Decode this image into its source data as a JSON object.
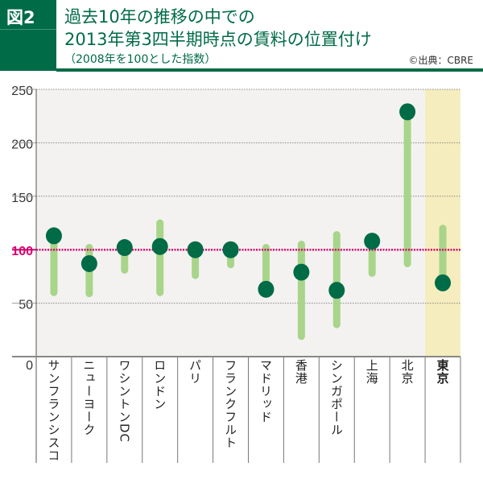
{
  "header": {
    "figure_no": "図2",
    "title_line1": "過去10年の推移の中での",
    "title_line2": "2013年第3四半期時点の賃料の位置付け",
    "subtitle": "（2008年を100とした指数）",
    "source": "©出典：CBRE"
  },
  "chart_data": {
    "type": "range-dot",
    "title": "過去10年の推移の中での 2013年第3四半期時点の賃料の位置付け",
    "subtitle": "（2008年を100とした指数）",
    "categories": [
      "サンフランシスコ",
      "ニューヨーク",
      "ワシントンDC",
      "ロンドン",
      "パリ",
      "フランクフルト",
      "マドリッド",
      "香港",
      "シンガポール",
      "上海",
      "北京",
      "東京"
    ],
    "series": [
      {
        "name": "range_high",
        "values": [
          113,
          102,
          102,
          125,
          100,
          100,
          102,
          105,
          114,
          108,
          229,
          120
        ]
      },
      {
        "name": "range_low",
        "values": [
          60,
          59,
          81,
          60,
          76,
          86,
          63,
          19,
          30,
          78,
          87,
          69
        ]
      },
      {
        "name": "current",
        "values": [
          113,
          87,
          102,
          103,
          100,
          100,
          63,
          79,
          62,
          108,
          229,
          69
        ]
      }
    ],
    "ylim": [
      0,
      250
    ],
    "yticks": [
      "0",
      "50",
      "100",
      "150",
      "200",
      "250"
    ],
    "reference_line": 100,
    "highlight_category": "東京",
    "grid": true,
    "colors": {
      "range": "#a8d58a",
      "dot": "#006b47",
      "reference": "#d6006f",
      "highlight": "#f5edbd",
      "plot_bg": "#f3f2f0"
    }
  }
}
